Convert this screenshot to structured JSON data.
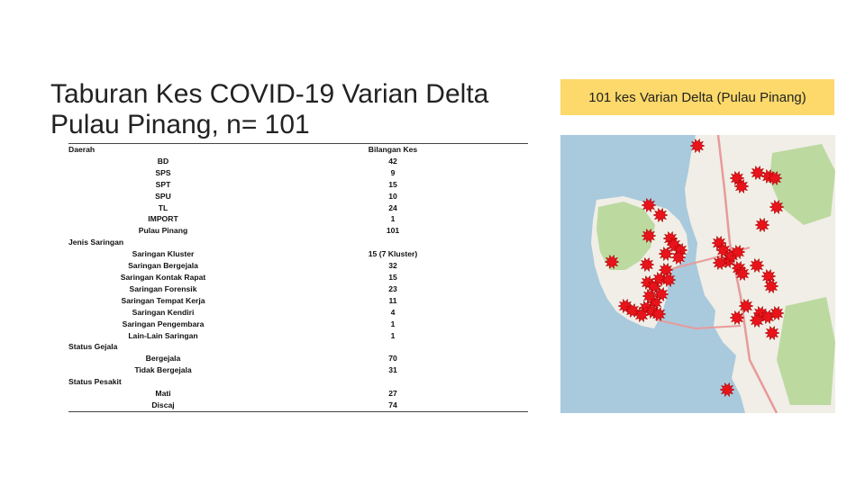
{
  "slide": {
    "title": "Taburan Kes COVID-19 Varian Delta Pulau Pinang, n= 101",
    "badge": "101 kes Varian Delta (Pulau Pinang)"
  },
  "table": {
    "headers": [
      "Daerah",
      "Bilangan Kes"
    ],
    "rows": [
      {
        "type": "item",
        "label": "BD",
        "value": "42"
      },
      {
        "type": "item",
        "label": "SPS",
        "value": "9"
      },
      {
        "type": "item",
        "label": "SPT",
        "value": "15"
      },
      {
        "type": "item",
        "label": "SPU",
        "value": "10"
      },
      {
        "type": "item",
        "label": "TL",
        "value": "24"
      },
      {
        "type": "item",
        "label": "IMPORT",
        "value": "1"
      },
      {
        "type": "item",
        "label": "Pulau Pinang",
        "value": "101"
      },
      {
        "type": "category",
        "label": "Jenis Saringan",
        "value": ""
      },
      {
        "type": "item",
        "label": "Saringan Kluster",
        "value": "15 (7 Kluster)"
      },
      {
        "type": "item",
        "label": "Saringan Bergejala",
        "value": "32"
      },
      {
        "type": "item",
        "label": "Saringan Kontak Rapat",
        "value": "15"
      },
      {
        "type": "item",
        "label": "Saringan Forensik",
        "value": "23"
      },
      {
        "type": "item",
        "label": "Saringan Tempat Kerja",
        "value": "11"
      },
      {
        "type": "item",
        "label": "Saringan Kendiri",
        "value": "4"
      },
      {
        "type": "item",
        "label": "Saringan Pengembara",
        "value": "1"
      },
      {
        "type": "item",
        "label": "Lain-Lain Saringan",
        "value": "1"
      },
      {
        "type": "category",
        "label": "Status Gejala",
        "value": ""
      },
      {
        "type": "item",
        "label": "Bergejala",
        "value": "70"
      },
      {
        "type": "item",
        "label": "Tidak Bergejala",
        "value": "31"
      },
      {
        "type": "category",
        "label": "Status Pesakit",
        "value": ""
      },
      {
        "type": "item",
        "label": "Mati",
        "value": "27"
      },
      {
        "type": "item",
        "label": "Discaj",
        "value": "74"
      }
    ]
  },
  "map": {
    "case_marker_color": "#e8141b",
    "marker_icon": "starburst-case-marker",
    "colors": {
      "sea": "#a9c9dd",
      "land": "#f0eee6",
      "green": "#bcd9a0",
      "road": "#e89a9a"
    }
  }
}
